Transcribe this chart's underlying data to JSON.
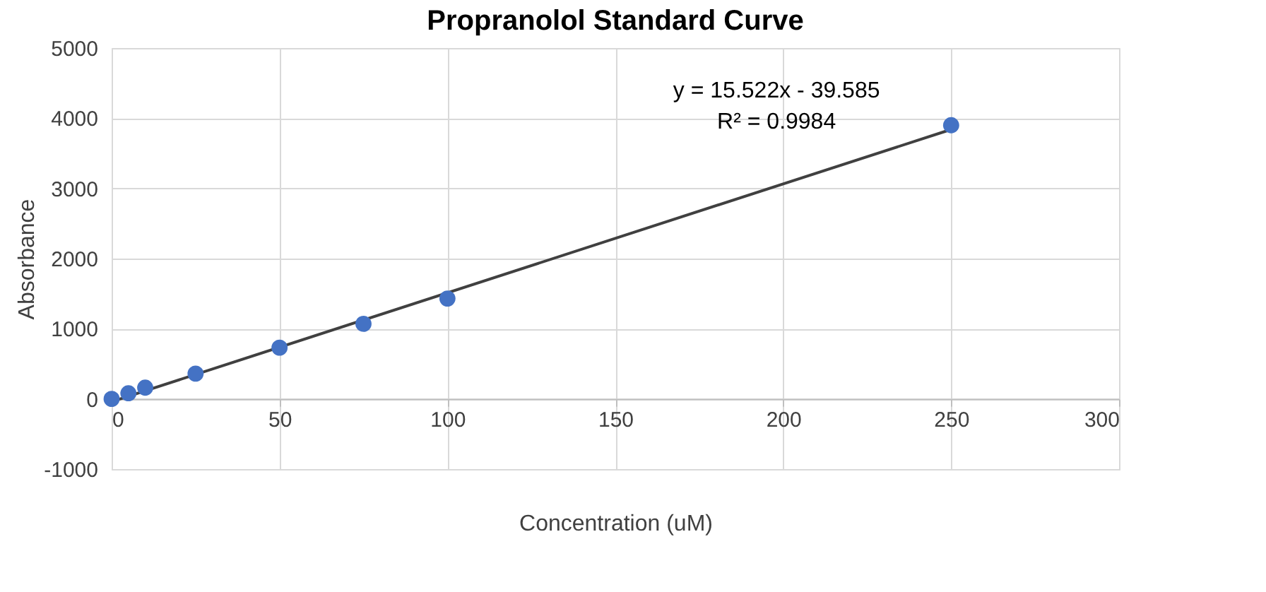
{
  "chart_data": {
    "type": "scatter",
    "title": "Propranolol Standard Curve",
    "xlabel": "Concentration (uM)",
    "ylabel": "Absorbance",
    "xlim": [
      0,
      300
    ],
    "xticks": [
      0,
      50,
      100,
      150,
      200,
      250,
      300
    ],
    "ylim": [
      -1000,
      5000
    ],
    "yticks": [
      -1000,
      0,
      1000,
      2000,
      3000,
      4000,
      5000
    ],
    "grid": true,
    "series": [
      {
        "color": "#4472c4",
        "marker": "circle",
        "x": [
          0,
          5,
          10,
          25,
          50,
          75,
          100,
          250
        ],
        "values": [
          0,
          80,
          160,
          360,
          730,
          1070,
          1430,
          3900
        ]
      },
      {
        "type": "line",
        "color": "#404040",
        "line_style": "solid",
        "x": [
          0,
          250
        ],
        "values": [
          -40,
          3840
        ]
      }
    ],
    "annotations": [
      "y = 15.522x - 39.585",
      "R² = 0.9984"
    ]
  }
}
